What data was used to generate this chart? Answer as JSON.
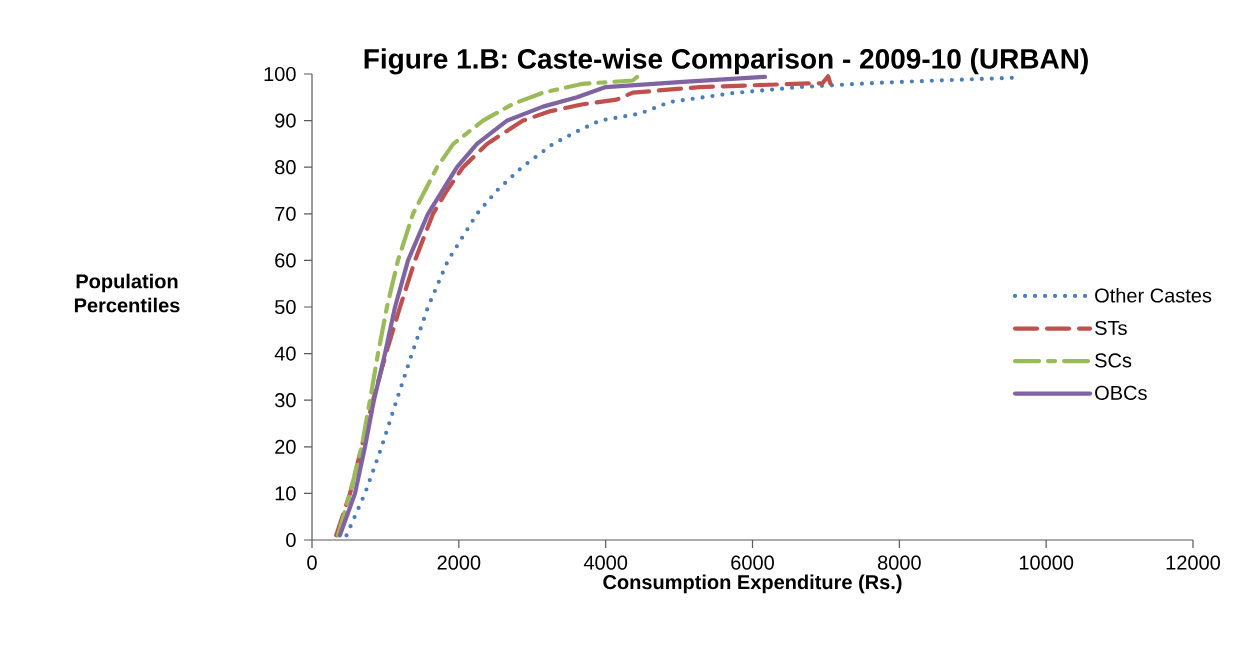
{
  "chart_data": {
    "type": "line",
    "title": "Figure 1.B: Caste-wise Comparison - 2009-10 (URBAN)",
    "xlabel": "Consumption Expenditure (Rs.)",
    "ylabel": "Population Percentiles",
    "xlim": [
      0,
      12000
    ],
    "xticks": [
      0,
      2000,
      4000,
      6000,
      8000,
      10000,
      12000
    ],
    "ylim": [
      0,
      100
    ],
    "yticks": [
      0,
      10,
      20,
      30,
      40,
      50,
      60,
      70,
      80,
      90,
      100
    ],
    "grid": false,
    "legend": "right",
    "marker": "none",
    "series": [
      {
        "name": "Other Castes",
        "color": "#4a7ebb",
        "line_style": "dotted",
        "x": [
          470,
          722,
          949,
          1153,
          1362,
          1580,
          1853,
          2247,
          2520,
          2860,
          3283,
          3650,
          3923,
          4467,
          4876,
          5734,
          6647,
          7695,
          8690,
          9575
        ],
        "values": [
          1,
          10,
          20,
          30,
          40,
          50,
          60,
          70,
          75,
          80,
          85,
          88,
          90,
          91.5,
          94,
          95.9,
          97.2,
          98.1,
          98.7,
          99.2
        ]
      },
      {
        "name": "STs",
        "color": "#c0504d",
        "line_style": "dashed",
        "x": [
          330,
          518,
          677,
          831,
          1008,
          1199,
          1403,
          1648,
          1839,
          2057,
          2384,
          2874,
          3240,
          3690,
          4150,
          4370,
          5285,
          6824,
          6950,
          7030,
          7060
        ],
        "values": [
          1,
          10,
          20,
          30,
          40,
          50,
          60,
          70,
          75,
          80,
          85,
          90,
          92,
          93.5,
          94.5,
          96,
          97.2,
          98,
          98,
          99.5,
          98
        ]
      },
      {
        "name": "SCs",
        "color": "#9bbb59",
        "line_style": "dashdot",
        "x": [
          354,
          518,
          677,
          790,
          899,
          1021,
          1171,
          1376,
          1703,
          1925,
          2330,
          2740,
          3146,
          3690,
          4370,
          4430
        ],
        "values": [
          1,
          10,
          20,
          30,
          40,
          50,
          60,
          70,
          80,
          85,
          90,
          93.6,
          96,
          97.9,
          98.6,
          99.4
        ]
      },
      {
        "name": "OBCs",
        "color": "#8064a2",
        "line_style": "solid",
        "x": [
          380,
          586,
          722,
          844,
          994,
          1131,
          1308,
          1580,
          1975,
          2247,
          2656,
          3146,
          3610,
          4000,
          5053,
          6170
        ],
        "values": [
          1,
          10,
          20,
          30,
          40,
          50,
          60,
          70,
          80,
          85,
          90,
          93,
          95,
          97.2,
          98.3,
          99.4
        ]
      }
    ]
  }
}
